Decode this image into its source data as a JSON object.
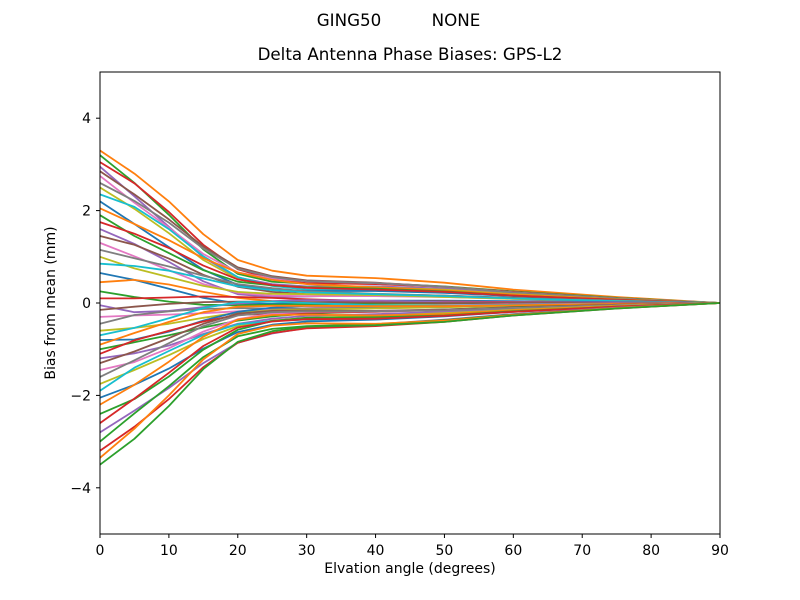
{
  "figure": {
    "background": "#ffffff",
    "frame_color": "#000000"
  },
  "chart_data": {
    "type": "line",
    "suptitle_left": "GING50",
    "suptitle_right": "NONE",
    "title": "Delta Antenna Phase Biases: GPS-L2",
    "xlabel": "Elvation angle (degrees)",
    "ylabel": "Bias from mean (mm)",
    "xlim": [
      0,
      90
    ],
    "ylim": [
      -5,
      5
    ],
    "x_ticks": [
      0,
      10,
      20,
      30,
      40,
      50,
      60,
      70,
      80,
      90
    ],
    "x_tick_labels": [
      "0",
      "10",
      "20",
      "30",
      "40",
      "50",
      "60",
      "70",
      "80",
      "90"
    ],
    "y_ticks": [
      -4,
      -2,
      0,
      2,
      4
    ],
    "y_tick_labels": [
      "−4",
      "−2",
      "0",
      "2",
      "4"
    ],
    "grid": false,
    "legend": "none",
    "line_width": 1.8,
    "color_cycle": [
      "#1f77b4",
      "#ff7f0e",
      "#2ca02c",
      "#d62728",
      "#9467bd",
      "#8c564b",
      "#e377c2",
      "#7f7f7f",
      "#bcbd22",
      "#17becf"
    ],
    "x": [
      0,
      5,
      10,
      15,
      20,
      25,
      30,
      40,
      50,
      60,
      75,
      90
    ],
    "series": [
      {
        "color": 1,
        "y": [
          3.3,
          2.8,
          2.2,
          1.49,
          0.93,
          0.7,
          0.59,
          0.54,
          0.44,
          0.29,
          0.13,
          0
        ]
      },
      {
        "color": 2,
        "y": [
          3.2,
          2.6,
          1.91,
          1.16,
          0.63,
          0.46,
          0.42,
          0.43,
          0.36,
          0.25,
          0.11,
          0
        ]
      },
      {
        "color": 3,
        "y": [
          3.05,
          2.59,
          1.97,
          1.26,
          0.73,
          0.52,
          0.43,
          0.41,
          0.35,
          0.24,
          0.1,
          0
        ]
      },
      {
        "color": 4,
        "y": [
          2.95,
          2.31,
          1.65,
          0.99,
          0.55,
          0.41,
          0.36,
          0.36,
          0.31,
          0.2,
          0.09,
          0
        ]
      },
      {
        "color": 5,
        "y": [
          2.85,
          2.35,
          1.81,
          1.22,
          0.77,
          0.58,
          0.49,
          0.44,
          0.35,
          0.23,
          0.1,
          0
        ]
      },
      {
        "color": 6,
        "y": [
          2.75,
          2.17,
          1.63,
          1.06,
          0.66,
          0.53,
          0.47,
          0.43,
          0.35,
          0.23,
          0.1,
          0
        ]
      },
      {
        "color": 7,
        "y": [
          2.6,
          2.21,
          1.74,
          1.18,
          0.74,
          0.56,
          0.47,
          0.43,
          0.35,
          0.23,
          0.1,
          0
        ]
      },
      {
        "color": 8,
        "y": [
          2.5,
          2.04,
          1.51,
          0.93,
          0.52,
          0.38,
          0.34,
          0.34,
          0.29,
          0.19,
          0.08,
          0
        ]
      },
      {
        "color": 9,
        "y": [
          2.35,
          2.08,
          1.6,
          1.01,
          0.56,
          0.37,
          0.29,
          0.29,
          0.25,
          0.17,
          0.08,
          0
        ]
      },
      {
        "color": 0,
        "y": [
          2.2,
          1.71,
          1.21,
          0.72,
          0.39,
          0.29,
          0.26,
          0.26,
          0.22,
          0.15,
          0.07,
          0
        ]
      },
      {
        "color": 1,
        "y": [
          2.05,
          1.71,
          1.36,
          0.97,
          0.66,
          0.5,
          0.41,
          0.34,
          0.27,
          0.18,
          0.08,
          0
        ]
      },
      {
        "color": 2,
        "y": [
          1.9,
          1.45,
          1.08,
          0.71,
          0.46,
          0.38,
          0.34,
          0.31,
          0.25,
          0.16,
          0.07,
          0
        ]
      },
      {
        "color": 3,
        "y": [
          1.75,
          1.5,
          1.19,
          0.81,
          0.51,
          0.39,
          0.33,
          0.29,
          0.24,
          0.16,
          0.07,
          0
        ]
      },
      {
        "color": 4,
        "y": [
          1.6,
          1.28,
          0.89,
          0.47,
          0.19,
          0.13,
          0.14,
          0.18,
          0.16,
          0.11,
          0.05,
          0
        ]
      },
      {
        "color": 5,
        "y": [
          1.45,
          1.26,
          0.96,
          0.61,
          0.35,
          0.24,
          0.19,
          0.19,
          0.16,
          0.11,
          0.05,
          0
        ]
      },
      {
        "color": 6,
        "y": [
          1.3,
          1.01,
          0.71,
          0.41,
          0.22,
          0.16,
          0.15,
          0.15,
          0.13,
          0.09,
          0.04,
          0
        ]
      },
      {
        "color": 7,
        "y": [
          1.15,
          0.97,
          0.79,
          0.59,
          0.41,
          0.32,
          0.25,
          0.2,
          0.16,
          0.1,
          0.05,
          0
        ]
      },
      {
        "color": 8,
        "y": [
          1.0,
          0.75,
          0.56,
          0.37,
          0.24,
          0.2,
          0.19,
          0.17,
          0.13,
          0.09,
          0.04,
          0
        ]
      },
      {
        "color": 9,
        "y": [
          0.85,
          0.8,
          0.7,
          0.53,
          0.36,
          0.28,
          0.23,
          0.19,
          0.15,
          0.1,
          0.04,
          0
        ]
      },
      {
        "color": 0,
        "y": [
          0.65,
          0.5,
          0.31,
          0.11,
          -0.01,
          -0.02,
          0.01,
          0.05,
          0.05,
          0.04,
          0.02,
          0
        ]
      },
      {
        "color": 1,
        "y": [
          0.45,
          0.5,
          0.4,
          0.24,
          0.11,
          0.04,
          0.01,
          0.02,
          0.03,
          0.02,
          0.01,
          0
        ]
      },
      {
        "color": 2,
        "y": [
          0.25,
          0.13,
          0.03,
          -0.04,
          -0.05,
          -0.04,
          -0.03,
          -0.01,
          -0.01,
          0,
          0,
          0
        ]
      },
      {
        "color": 3,
        "y": [
          0.1,
          0.1,
          0.12,
          0.14,
          0.13,
          0.11,
          0.08,
          0.04,
          0.03,
          0.02,
          0.01,
          0
        ]
      },
      {
        "color": 4,
        "y": [
          -0.05,
          -0.2,
          -0.17,
          -0.09,
          -0.01,
          0.04,
          0.06,
          0.05,
          0.02,
          0.01,
          0.01,
          0
        ]
      },
      {
        "color": 5,
        "y": [
          -0.15,
          -0.08,
          -0.02,
          0.02,
          0.03,
          0.03,
          0.02,
          0.01,
          0,
          0,
          0,
          0
        ]
      },
      {
        "color": 6,
        "y": [
          -0.3,
          -0.27,
          -0.25,
          -0.22,
          -0.18,
          -0.14,
          -0.11,
          -0.07,
          -0.05,
          -0.03,
          -0.01,
          0
        ]
      },
      {
        "color": 7,
        "y": [
          -0.45,
          -0.26,
          -0.18,
          -0.13,
          -0.11,
          -0.12,
          -0.12,
          -0.1,
          -0.07,
          -0.05,
          -0.02,
          0
        ]
      },
      {
        "color": 8,
        "y": [
          -0.6,
          -0.54,
          -0.45,
          -0.32,
          -0.21,
          -0.16,
          -0.14,
          -0.12,
          -0.09,
          -0.06,
          -0.03,
          0
        ]
      },
      {
        "color": 9,
        "y": [
          -0.7,
          -0.54,
          -0.33,
          -0.11,
          0.02,
          0.03,
          0,
          -0.05,
          -0.06,
          -0.04,
          -0.02,
          0
        ]
      },
      {
        "color": 0,
        "y": [
          -0.8,
          -0.79,
          -0.62,
          -0.38,
          -0.19,
          -0.1,
          -0.06,
          -0.07,
          -0.07,
          -0.05,
          -0.02,
          0
        ]
      },
      {
        "color": 1,
        "y": [
          -0.9,
          -0.65,
          -0.41,
          -0.2,
          -0.08,
          -0.06,
          -0.06,
          -0.07,
          -0.07,
          -0.05,
          -0.02,
          0
        ]
      },
      {
        "color": 2,
        "y": [
          -1.0,
          -0.85,
          -0.7,
          -0.53,
          -0.38,
          -0.29,
          -0.23,
          -0.18,
          -0.14,
          -0.09,
          -0.04,
          0
        ]
      },
      {
        "color": 3,
        "y": [
          -1.1,
          -0.81,
          -0.6,
          -0.4,
          -0.26,
          -0.23,
          -0.21,
          -0.19,
          -0.15,
          -0.1,
          -0.04,
          0
        ]
      },
      {
        "color": 4,
        "y": [
          -1.2,
          -1.09,
          -0.92,
          -0.67,
          -0.45,
          -0.34,
          -0.28,
          -0.24,
          -0.19,
          -0.13,
          -0.06,
          0
        ]
      },
      {
        "color": 5,
        "y": [
          -1.3,
          -1.05,
          -0.76,
          -0.45,
          -0.23,
          -0.17,
          -0.16,
          -0.17,
          -0.14,
          -0.1,
          -0.04,
          0
        ]
      },
      {
        "color": 6,
        "y": [
          -1.45,
          -1.28,
          -0.98,
          -0.62,
          -0.35,
          -0.23,
          -0.19,
          -0.18,
          -0.16,
          -0.11,
          -0.05,
          0
        ]
      },
      {
        "color": 7,
        "y": [
          -1.6,
          -1.24,
          -0.87,
          -0.5,
          -0.27,
          -0.2,
          -0.18,
          -0.18,
          -0.16,
          -0.11,
          -0.05,
          0
        ]
      },
      {
        "color": 8,
        "y": [
          -1.75,
          -1.45,
          -1.13,
          -0.78,
          -0.5,
          -0.38,
          -0.32,
          -0.28,
          -0.22,
          -0.15,
          -0.06,
          0
        ]
      },
      {
        "color": 9,
        "y": [
          -1.9,
          -1.4,
          -1.04,
          -0.69,
          -0.46,
          -0.39,
          -0.36,
          -0.33,
          -0.26,
          -0.17,
          -0.07,
          0
        ]
      },
      {
        "color": 0,
        "y": [
          -2.05,
          -1.77,
          -1.42,
          -0.99,
          -0.63,
          -0.47,
          -0.4,
          -0.36,
          -0.29,
          -0.19,
          -0.08,
          0
        ]
      },
      {
        "color": 1,
        "y": [
          -2.2,
          -1.77,
          -1.27,
          -0.73,
          -0.36,
          -0.26,
          -0.25,
          -0.27,
          -0.24,
          -0.16,
          -0.07,
          0
        ]
      },
      {
        "color": 2,
        "y": [
          -2.4,
          -2.08,
          -1.59,
          -1.01,
          -0.58,
          -0.39,
          -0.32,
          -0.31,
          -0.27,
          -0.18,
          -0.08,
          0
        ]
      },
      {
        "color": 3,
        "y": [
          -2.6,
          -2.07,
          -1.51,
          -0.93,
          -0.53,
          -0.4,
          -0.35,
          -0.34,
          -0.28,
          -0.19,
          -0.08,
          0
        ]
      },
      {
        "color": 4,
        "y": [
          -2.8,
          -2.33,
          -1.84,
          -1.3,
          -0.86,
          -0.66,
          -0.54,
          -0.46,
          -0.36,
          -0.24,
          -0.1,
          0
        ]
      },
      {
        "color": 2,
        "y": [
          -3.0,
          -2.39,
          -1.8,
          -1.17,
          -0.72,
          -0.56,
          -0.5,
          -0.46,
          -0.37,
          -0.25,
          -0.11,
          0
        ]
      },
      {
        "color": 3,
        "y": [
          -3.2,
          -2.68,
          -2.08,
          -1.39,
          -0.86,
          -0.65,
          -0.55,
          -0.5,
          -0.41,
          -0.27,
          -0.12,
          0
        ]
      },
      {
        "color": 1,
        "y": [
          -3.35,
          -2.72,
          -2.0,
          -1.22,
          -0.67,
          -0.49,
          -0.44,
          -0.45,
          -0.38,
          -0.26,
          -0.11,
          0
        ]
      },
      {
        "color": 2,
        "y": [
          -3.5,
          -2.94,
          -2.23,
          -1.43,
          -0.84,
          -0.61,
          -0.51,
          -0.48,
          -0.41,
          -0.27,
          -0.12,
          0
        ]
      }
    ]
  }
}
